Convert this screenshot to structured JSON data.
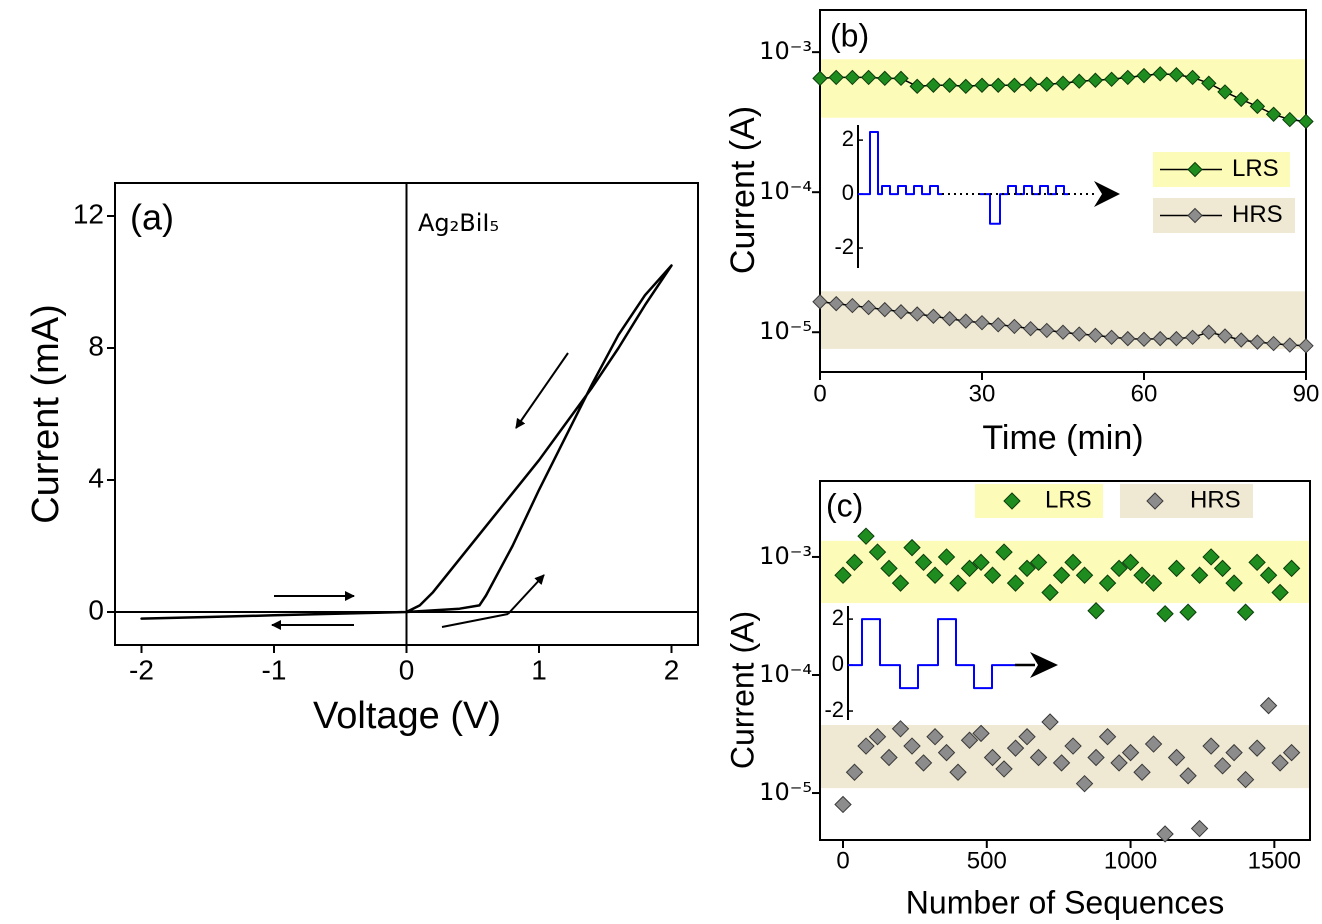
{
  "chart_data": [
    {
      "type": "line",
      "label": "(a)",
      "annotation": "Ag₂BiI₅",
      "x_label": "Voltage (V)",
      "y_label": "Current (mA)",
      "xlim": [
        -2.2,
        2.2
      ],
      "ylim": [
        -1,
        13
      ],
      "xticks": [
        -2,
        -1,
        0,
        1,
        2
      ],
      "yticks": [
        0,
        4,
        8,
        12
      ],
      "zero_lines": true,
      "series": [
        {
          "color": "#000000",
          "x": [
            0,
            0.2,
            0.4,
            0.55,
            0.6,
            0.8,
            1.0,
            1.2,
            1.4,
            1.6,
            1.8,
            2.0,
            1.8,
            1.6,
            1.4,
            1.2,
            1.0,
            0.8,
            0.6,
            0.4,
            0.2,
            0.1,
            0,
            -0.5,
            -1,
            -1.5,
            -2,
            -1.5,
            -1,
            -0.5,
            0
          ],
          "values": [
            0,
            0.05,
            0.1,
            0.2,
            0.5,
            2.0,
            3.7,
            5.3,
            6.9,
            8.4,
            9.6,
            10.5,
            9.3,
            8.0,
            6.8,
            5.7,
            4.6,
            3.6,
            2.6,
            1.6,
            0.6,
            0.2,
            0,
            -0.05,
            -0.1,
            -0.15,
            -0.2,
            -0.15,
            -0.1,
            -0.05,
            0
          ]
        }
      ]
    },
    {
      "type": "line",
      "label": "(b)",
      "x_label": "Time (min)",
      "y_label": "Current (A)",
      "log_y": true,
      "xlim": [
        0,
        90
      ],
      "ylim": [
        5.2e-06,
        0.002
      ],
      "xticks": [
        0,
        30,
        60,
        90
      ],
      "yticks": [
        {
          "value": 0.001,
          "label": "10⁻³"
        },
        {
          "value": 0.0001,
          "label": "10⁻⁴"
        },
        {
          "value": 1e-05,
          "label": "10⁻⁵"
        }
      ],
      "bands": [
        {
          "range": [
            0.00034,
            0.00089
          ],
          "color": "#fdfbb8"
        },
        {
          "range": [
            7.6e-06,
            1.96e-05
          ],
          "color": "#efe9d3"
        }
      ],
      "series": [
        {
          "name": "LRS",
          "color": "#1e8c1e",
          "marker": "diamond",
          "x": [
            0,
            3,
            6,
            9,
            12,
            15,
            18,
            21,
            24,
            27,
            30,
            33,
            36,
            39,
            42,
            45,
            48,
            51,
            54,
            57,
            60,
            63,
            66,
            69,
            72,
            75,
            78,
            81,
            84,
            87,
            90
          ],
          "values": [
            0.00065,
            0.00066,
            0.00066,
            0.00066,
            0.00065,
            0.00065,
            0.00057,
            0.00058,
            0.00058,
            0.00057,
            0.00058,
            0.00058,
            0.00058,
            0.00059,
            0.00059,
            0.0006,
            0.00062,
            0.00063,
            0.00064,
            0.00066,
            0.00068,
            0.0007,
            0.00069,
            0.00066,
            0.0006,
            0.00052,
            0.00046,
            0.00041,
            0.00036,
            0.00033,
            0.00032
          ]
        },
        {
          "name": "HRS",
          "color": "#8c8c8c",
          "marker": "diamond",
          "x": [
            0,
            3,
            6,
            9,
            12,
            15,
            18,
            21,
            24,
            27,
            30,
            33,
            36,
            39,
            42,
            45,
            48,
            51,
            54,
            57,
            60,
            63,
            66,
            69,
            72,
            75,
            78,
            81,
            84,
            87,
            90
          ],
          "values": [
            1.65e-05,
            1.6e-05,
            1.55e-05,
            1.5e-05,
            1.45e-05,
            1.4e-05,
            1.35e-05,
            1.3e-05,
            1.25e-05,
            1.2e-05,
            1.17e-05,
            1.13e-05,
            1.1e-05,
            1.06e-05,
            1.03e-05,
            1e-05,
            9.7e-06,
            9.5e-06,
            9.2e-06,
            9e-06,
            8.9e-06,
            9e-06,
            9e-06,
            9.2e-06,
            1e-05,
            9.4e-06,
            8.8e-06,
            8.5e-06,
            8.3e-06,
            8.1e-06,
            8e-06
          ]
        }
      ],
      "inset": {
        "xlim": [
          0,
          250
        ],
        "ylim": [
          -2.74,
          2.56
        ],
        "yticks": [
          -2,
          0,
          2
        ],
        "color": "#0000ff",
        "x": [
          0,
          12,
          12,
          20,
          20,
          24,
          24,
          32,
          32,
          40,
          40,
          48,
          48,
          56,
          56,
          64,
          64,
          72,
          72,
          80,
          80,
          84,
          null,
          122,
          132,
          132,
          142,
          142,
          150,
          150,
          158,
          158,
          166,
          166,
          174,
          174,
          182,
          182,
          190,
          190,
          198,
          198,
          206,
          206,
          210
        ],
        "values": [
          0,
          0,
          2.3,
          2.3,
          0,
          0,
          0.3,
          0.3,
          0,
          0,
          0.3,
          0.3,
          0,
          0,
          0.3,
          0.3,
          0,
          0,
          0.3,
          0.3,
          0,
          0,
          null,
          0,
          0,
          -1.1,
          -1.1,
          0,
          0,
          0.3,
          0.3,
          0,
          0,
          0.3,
          0.3,
          0,
          0,
          0.3,
          0.3,
          0,
          0,
          0.3,
          0.3,
          0,
          0
        ]
      }
    },
    {
      "type": "scatter",
      "label": "(c)",
      "x_label": "Number of Sequences",
      "y_label": "Current (A)",
      "log_y": true,
      "xlim": [
        -80,
        1624
      ],
      "ylim": [
        4e-06,
        0.0044
      ],
      "xticks": [
        0,
        500,
        1000,
        1500
      ],
      "yticks": [
        {
          "value": 0.001,
          "label": "10⁻³"
        },
        {
          "value": 0.0001,
          "label": "10⁻⁴"
        },
        {
          "value": 1e-05,
          "label": "10⁻⁵"
        }
      ],
      "bands": [
        {
          "range": [
            0.000407,
            0.00137
          ],
          "color": "#fdfbb8"
        },
        {
          "range": [
            1.1e-05,
            3.77e-05
          ],
          "color": "#efe9d3"
        }
      ],
      "series": [
        {
          "name": "LRS",
          "color": "#1e8c1e",
          "x": [
            0,
            40,
            80,
            120,
            160,
            200,
            240,
            280,
            320,
            360,
            400,
            440,
            480,
            520,
            560,
            600,
            640,
            680,
            720,
            760,
            800,
            840,
            880,
            920,
            960,
            1000,
            1040,
            1080,
            1120,
            1160,
            1200,
            1240,
            1280,
            1320,
            1360,
            1400,
            1440,
            1480,
            1520,
            1560
          ],
          "values": [
            0.0007,
            0.0009,
            0.0015,
            0.0011,
            0.0008,
            0.0006,
            0.0012,
            0.0009,
            0.0007,
            0.001,
            0.0006,
            0.0008,
            0.0009,
            0.0007,
            0.0011,
            0.0006,
            0.0008,
            0.0009,
            0.0005,
            0.0007,
            0.0009,
            0.0007,
            0.00035,
            0.0006,
            0.0008,
            0.0009,
            0.0007,
            0.0006,
            0.00033,
            0.0008,
            0.00034,
            0.0007,
            0.001,
            0.0008,
            0.0006,
            0.00034,
            0.0009,
            0.0007,
            0.0005,
            0.0008
          ]
        },
        {
          "name": "HRS",
          "color": "#8c8c8c",
          "x": [
            0,
            40,
            80,
            120,
            160,
            200,
            240,
            280,
            320,
            360,
            400,
            440,
            480,
            520,
            560,
            600,
            640,
            680,
            720,
            760,
            800,
            840,
            880,
            920,
            960,
            1000,
            1040,
            1080,
            1120,
            1160,
            1200,
            1240,
            1280,
            1320,
            1360,
            1400,
            1440,
            1480,
            1520,
            1560
          ],
          "values": [
            8e-06,
            1.5e-05,
            2.5e-05,
            3e-05,
            2e-05,
            3.5e-05,
            2.5e-05,
            1.8e-05,
            3e-05,
            2.2e-05,
            1.5e-05,
            2.8e-05,
            3.2e-05,
            2e-05,
            1.6e-05,
            2.4e-05,
            3e-05,
            2e-05,
            4e-05,
            1.8e-05,
            2.5e-05,
            1.2e-05,
            2e-05,
            3e-05,
            1.8e-05,
            2.2e-05,
            1.5e-05,
            2.6e-05,
            4.5e-06,
            2e-05,
            1.4e-05,
            5e-06,
            2.5e-05,
            1.7e-05,
            2.2e-05,
            1.3e-05,
            2.4e-05,
            5.5e-05,
            1.8e-05,
            2.2e-05
          ]
        }
      ],
      "inset": {
        "xlim": [
          0,
          207
        ],
        "ylim": [
          -2.39,
          2.57
        ],
        "yticks": [
          -2,
          0,
          2
        ],
        "color": "#0000ff",
        "x": [
          0,
          14,
          14,
          32,
          32,
          52,
          52,
          70,
          70,
          90,
          90,
          108,
          108,
          126,
          126,
          144,
          144,
          167
        ],
        "values": [
          0,
          0,
          2,
          2,
          0,
          0,
          -1,
          -1,
          0,
          0,
          2,
          2,
          0,
          0,
          -1,
          -1,
          0,
          0
        ]
      }
    }
  ]
}
